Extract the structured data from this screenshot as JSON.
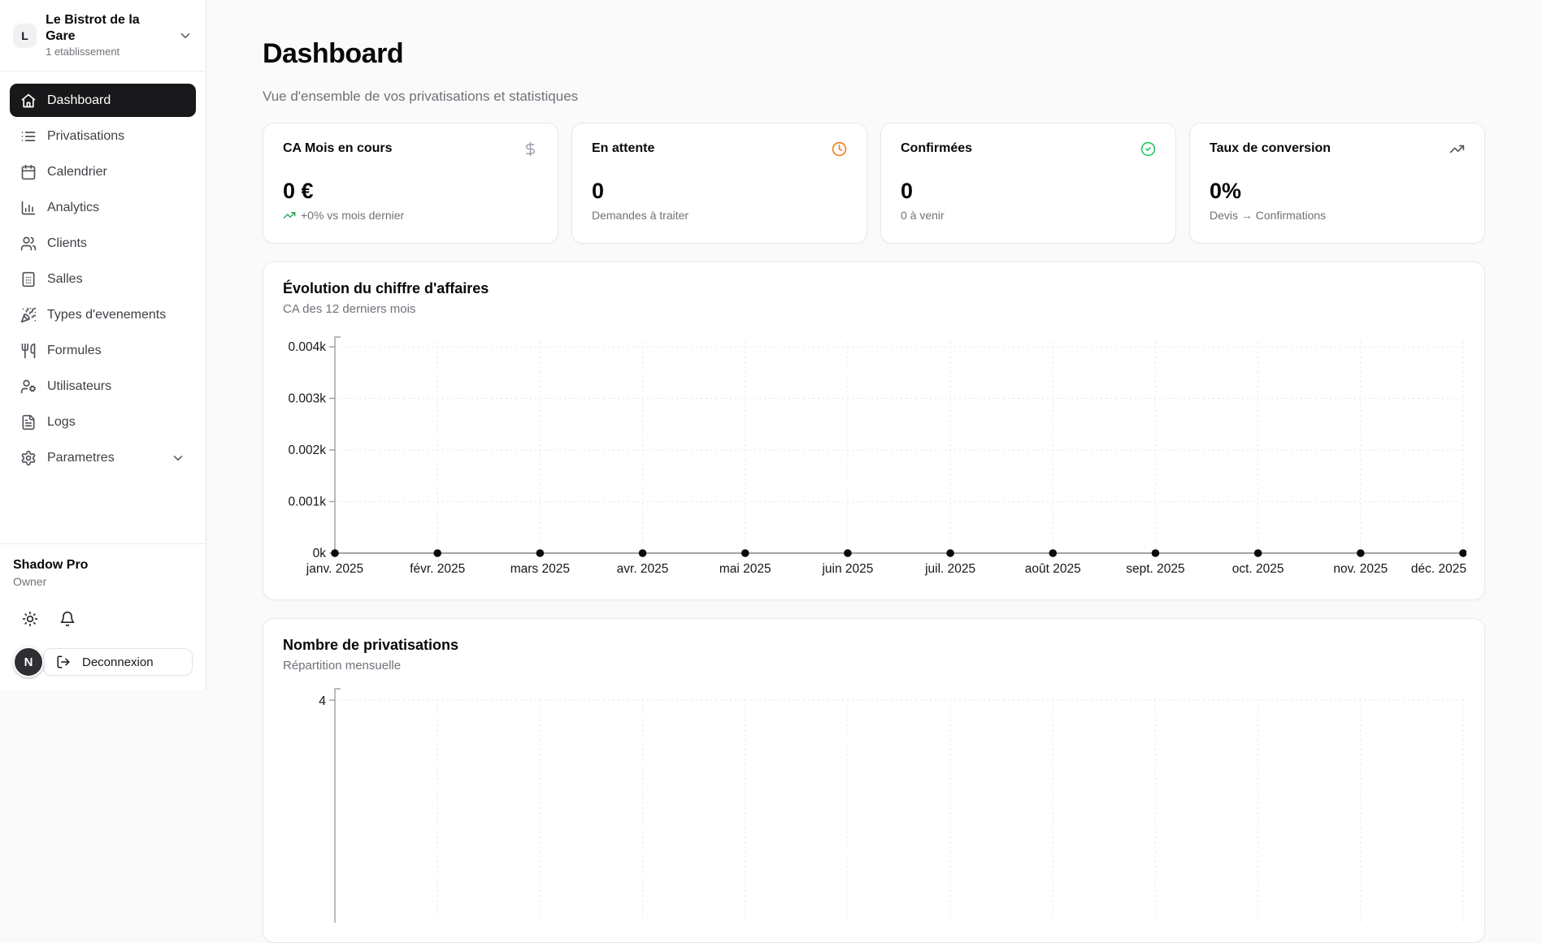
{
  "workspace": {
    "initial": "L",
    "name": "Le Bistrot de la Gare",
    "meta": "1 etablissement"
  },
  "sidebar": {
    "items": [
      {
        "label": "Dashboard",
        "icon": "home-icon",
        "active": true
      },
      {
        "label": "Privatisations",
        "icon": "list-icon"
      },
      {
        "label": "Calendrier",
        "icon": "calendar-icon"
      },
      {
        "label": "Analytics",
        "icon": "chart-column-icon"
      },
      {
        "label": "Clients",
        "icon": "users-icon"
      },
      {
        "label": "Salles",
        "icon": "building-icon"
      },
      {
        "label": "Types d'evenements",
        "icon": "party-popper-icon"
      },
      {
        "label": "Formules",
        "icon": "utensils-icon"
      },
      {
        "label": "Utilisateurs",
        "icon": "user-cog-icon"
      },
      {
        "label": "Logs",
        "icon": "file-text-icon"
      },
      {
        "label": "Parametres",
        "icon": "settings-icon",
        "expandable": true
      }
    ]
  },
  "account": {
    "name": "Shadow Pro",
    "role": "Owner",
    "avatar_initial": "N",
    "logout_label": "Deconnexion"
  },
  "page": {
    "title": "Dashboard",
    "subtitle": "Vue d'ensemble de vos privatisations et statistiques"
  },
  "stats": [
    {
      "title": "CA Mois en cours",
      "icon": "dollar-icon",
      "icon_color": "#9ca3af",
      "value": "0 €",
      "footnote": "+0% vs mois dernier",
      "footnote_icon": "trending-up-icon",
      "footnote_icon_color": "#16a34a"
    },
    {
      "title": "En attente",
      "icon": "clock-icon",
      "icon_color": "#f07b16",
      "value": "0",
      "footnote": "Demandes à traiter"
    },
    {
      "title": "Confirmées",
      "icon": "circle-check-icon",
      "icon_color": "#22c55e",
      "value": "0",
      "footnote": "0 à venir"
    },
    {
      "title": "Taux de conversion",
      "icon": "trending-up-icon",
      "icon_color": "#52525b",
      "value": "0%",
      "footnote": "Devis → Confirmations"
    }
  ],
  "chart_data": [
    {
      "type": "line",
      "title": "Évolution du chiffre d'affaires",
      "subtitle": "CA des 12 derniers mois",
      "x": [
        "janv. 2025",
        "févr. 2025",
        "mars 2025",
        "avr. 2025",
        "mai 2025",
        "juin 2025",
        "juil. 2025",
        "août 2025",
        "sept. 2025",
        "oct. 2025",
        "nov. 2025",
        "déc. 2025"
      ],
      "values": [
        0,
        0,
        0,
        0,
        0,
        0,
        0,
        0,
        0,
        0,
        0,
        0
      ],
      "ylabel_ticks": [
        "0k",
        "0.001k",
        "0.002k",
        "0.003k",
        "0.004k"
      ],
      "ylim": [
        0,
        4
      ],
      "grid": "dotted",
      "legend": "none"
    },
    {
      "type": "bar",
      "title": "Nombre de privatisations",
      "subtitle": "Répartition mensuelle",
      "yticks_visible": [
        "4"
      ],
      "ylim": [
        0,
        4
      ],
      "grid": "dotted",
      "legend": "none"
    }
  ],
  "colors": {
    "active_item_bg": "#18181b",
    "axis": "#a3a3a3",
    "grid": "#e5e5e5",
    "dot": "#0a0a0a",
    "positive": "#16a34a",
    "pending": "#f07b16",
    "confirmed": "#22c55e"
  }
}
